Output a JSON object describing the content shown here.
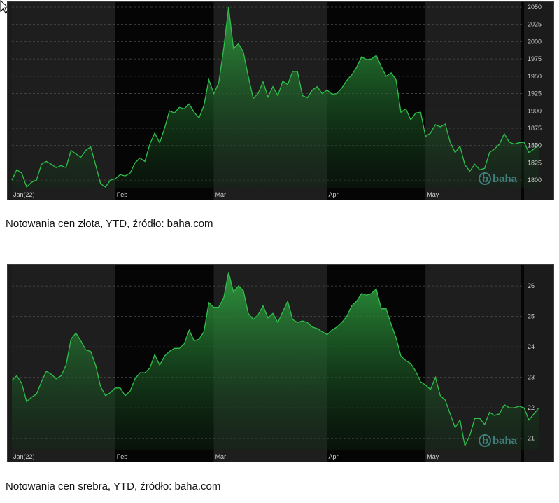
{
  "charts": [
    {
      "caption": "Notowania cen złota, YTD, źródło: baha.com",
      "brand": "baha",
      "chart_data": {
        "type": "area",
        "series_color": "#2fbf4a",
        "months": [
          {
            "label": "Jan(22)",
            "start": 0
          },
          {
            "label": "Feb",
            "start": 21
          },
          {
            "label": "Mar",
            "start": 41
          },
          {
            "label": "Apr",
            "start": 64
          },
          {
            "label": "May",
            "start": 84
          }
        ],
        "y_ticks": [
          1800,
          1825,
          1850,
          1875,
          1900,
          1925,
          1950,
          1975,
          2000,
          2025,
          2050
        ],
        "ylim": [
          1788,
          2053
        ],
        "xlim": [
          0,
          104
        ],
        "values": [
          1800,
          1815,
          1810,
          1790,
          1797,
          1800,
          1823,
          1827,
          1823,
          1818,
          1821,
          1818,
          1843,
          1838,
          1833,
          1843,
          1848,
          1822,
          1795,
          1790,
          1800,
          1802,
          1808,
          1806,
          1810,
          1825,
          1832,
          1827,
          1852,
          1868,
          1854,
          1875,
          1900,
          1897,
          1905,
          1903,
          1910,
          1898,
          1890,
          1908,
          1945,
          1925,
          1940,
          1990,
          2050,
          1990,
          1997,
          1985,
          1950,
          1918,
          1925,
          1942,
          1920,
          1935,
          1922,
          1943,
          1938,
          1957,
          1957,
          1922,
          1919,
          1930,
          1935,
          1925,
          1930,
          1924,
          1925,
          1933,
          1944,
          1952,
          1963,
          1978,
          1974,
          1975,
          1980,
          1964,
          1950,
          1955,
          1945,
          1898,
          1903,
          1887,
          1897,
          1898,
          1863,
          1868,
          1880,
          1877,
          1881,
          1855,
          1840,
          1849,
          1822,
          1813,
          1823,
          1815,
          1817,
          1840,
          1845,
          1852,
          1867,
          1855,
          1852,
          1854,
          1855,
          1840,
          1845,
          1852
        ]
      }
    },
    {
      "caption": "Notowania cen srebra, YTD, źródło: baha.com",
      "brand": "baha",
      "chart_data": {
        "type": "area",
        "series_color": "#2fbf4a",
        "months": [
          {
            "label": "Jan(22)",
            "start": 0
          },
          {
            "label": "Feb",
            "start": 21
          },
          {
            "label": "Mar",
            "start": 41
          },
          {
            "label": "Apr",
            "start": 64
          },
          {
            "label": "May",
            "start": 84
          }
        ],
        "y_ticks": [
          21,
          22,
          23,
          24,
          25,
          26
        ],
        "ylim": [
          20.6,
          26.6
        ],
        "xlim": [
          0,
          104
        ],
        "values": [
          22.9,
          23.05,
          22.8,
          22.2,
          22.35,
          22.45,
          22.85,
          23.2,
          23.1,
          22.95,
          23.05,
          23.4,
          24.25,
          24.45,
          24.2,
          23.9,
          23.85,
          23.4,
          22.7,
          22.4,
          22.5,
          22.65,
          22.65,
          22.4,
          22.55,
          22.95,
          23.15,
          23.15,
          23.3,
          23.75,
          23.4,
          23.7,
          23.85,
          23.95,
          23.95,
          24.1,
          24.55,
          24.2,
          24.25,
          24.5,
          25.45,
          25.3,
          25.3,
          25.6,
          26.45,
          25.8,
          26.0,
          25.85,
          25.1,
          24.9,
          25.05,
          25.35,
          24.95,
          25.1,
          24.8,
          25.15,
          25.5,
          24.9,
          24.8,
          24.85,
          24.8,
          24.65,
          24.6,
          24.5,
          24.4,
          24.55,
          24.65,
          24.8,
          25.0,
          25.35,
          25.5,
          25.75,
          25.7,
          25.75,
          25.9,
          25.25,
          25.25,
          24.75,
          24.3,
          23.7,
          23.55,
          23.45,
          23.2,
          22.85,
          22.75,
          22.6,
          23.0,
          22.4,
          22.25,
          21.8,
          21.35,
          21.6,
          20.75,
          21.1,
          21.65,
          21.65,
          21.45,
          21.85,
          21.75,
          21.8,
          22.1,
          22.0,
          22.0,
          22.05,
          22.0,
          21.6,
          21.8,
          22.0
        ]
      }
    }
  ]
}
